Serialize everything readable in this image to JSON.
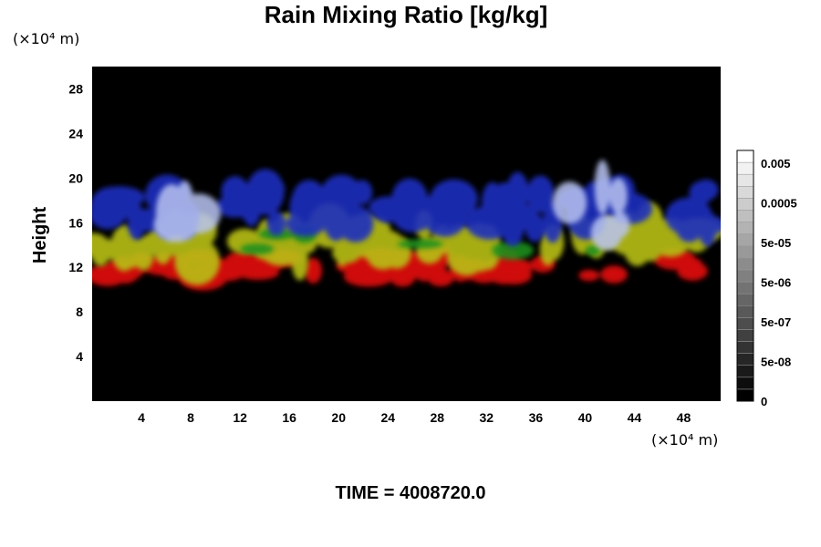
{
  "chart_data": {
    "type": "heatmap",
    "title": "Rain Mixing Ratio [kg/kg]",
    "ylabel": "Height",
    "x_unit": "(×10⁴ m)",
    "y_unit": "(×10⁴ m)",
    "xlim": [
      0,
      51
    ],
    "ylim": [
      0,
      30
    ],
    "xticks": [
      4,
      8,
      12,
      16,
      20,
      24,
      28,
      32,
      36,
      40,
      44,
      48
    ],
    "yticks": [
      4,
      8,
      12,
      16,
      20,
      24,
      28
    ],
    "colorbar": {
      "labels": [
        "0.005",
        "0.0005",
        "5e-05",
        "5e-06",
        "5e-07",
        "5e-08",
        "0"
      ],
      "levels": 21,
      "low_color": "#000000",
      "high_color": "#ffffff"
    },
    "background_color": "#000000",
    "layers": [
      {
        "color": "#e61111",
        "height_range": [
          11,
          13
        ]
      },
      {
        "color": "#b8c016",
        "height_range": [
          12.5,
          16
        ]
      },
      {
        "color": "#1b8f1b",
        "height_range": [
          13.5,
          15
        ]
      },
      {
        "color": "#1f2fbf",
        "height_range": [
          15.5,
          19
        ]
      },
      {
        "color": "#b9c4f2",
        "height_range": [
          15,
          19.5
        ]
      }
    ]
  },
  "footer": {
    "time_label": "TIME = 4008720.0"
  }
}
